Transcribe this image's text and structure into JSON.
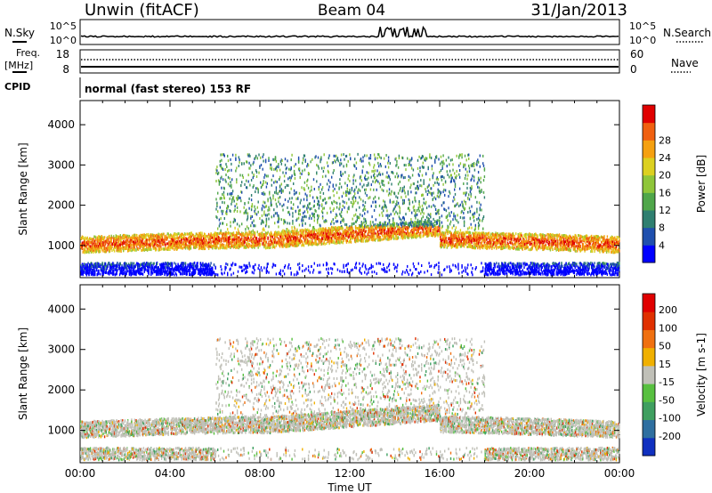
{
  "header": {
    "station": "Unwin (fitACF)",
    "beam": "Beam 04",
    "date": "31/Jan/2013"
  },
  "status_panel": {
    "nsky_label": "N.Sky",
    "nsky_ticks": [
      "10^5",
      "10^0"
    ],
    "nsearch_label": "N.Search",
    "nsearch_ticks": [
      "10^5",
      "10^0"
    ],
    "freq_label": "Freq.",
    "freq_unit": "[MHz]",
    "freq_ticks": [
      "18",
      "8"
    ],
    "nave_label": "Nave",
    "nave_ticks": [
      "60",
      "0"
    ],
    "cpid_label": "CPID",
    "cpid_value": "normal (fast stereo) 153 RF"
  },
  "chart_data": [
    {
      "type": "heatmap",
      "parameter": "Power",
      "ylabel": "Slant Range [km]",
      "yticks": [
        1000,
        2000,
        3000,
        4000
      ],
      "ylim": [
        200,
        4600
      ],
      "colorbar_label": "Power [dB]",
      "colorbar_ticks": [
        "4",
        "8",
        "12",
        "16",
        "20",
        "24",
        "28"
      ],
      "colorscale": [
        "#0000ff",
        "#1f4fae",
        "#2f7f70",
        "#4fa64a",
        "#8fc63a",
        "#dcd020",
        "#f5a010",
        "#f06010",
        "#e00000"
      ],
      "features": [
        {
          "description": "main band",
          "time_range": [
            "00:00",
            "24:00"
          ],
          "range_km": [
            950,
            1300
          ],
          "peak_power_db": 28
        }
      ]
    },
    {
      "type": "heatmap",
      "parameter": "Velocity",
      "ylabel": "Slant Range [km]",
      "yticks": [
        1000,
        2000,
        3000,
        4000
      ],
      "ylim": [
        200,
        4600
      ],
      "colorbar_label": "Velocity [m s-1]",
      "colorbar_ticks": [
        "200",
        "100",
        "50",
        "15",
        "-15",
        "-50",
        "-100",
        "-200"
      ],
      "colorscale": [
        "#1030c0",
        "#2f6fa0",
        "#3f9f60",
        "#58c040",
        "#c0c0b8",
        "#f0b000",
        "#f07010",
        "#e03000",
        "#e00000"
      ]
    }
  ],
  "x_axis": {
    "ticks": [
      "00:00",
      "04:00",
      "08:00",
      "12:00",
      "16:00",
      "20:00",
      "00:00"
    ],
    "label": "Time UT"
  }
}
